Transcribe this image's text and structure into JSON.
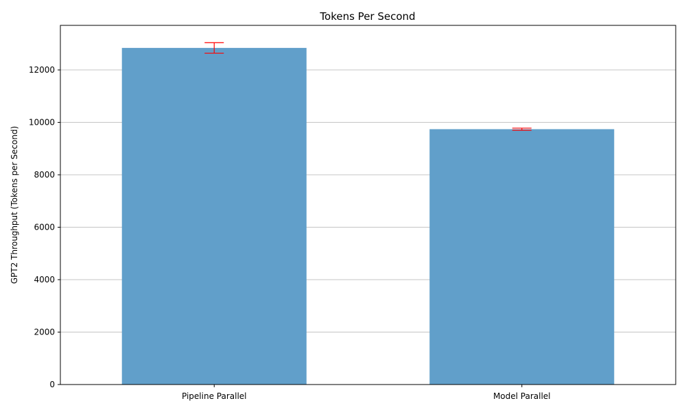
{
  "chart_data": {
    "type": "bar",
    "title": "Tokens Per Second",
    "xlabel": "",
    "ylabel": "GPT2 Throughput (Tokens per Second)",
    "categories": [
      "Pipeline Parallel",
      "Model Parallel"
    ],
    "values": [
      12840,
      9740
    ],
    "errors": [
      200,
      40
    ],
    "ylim": [
      0,
      13700
    ],
    "yticks": [
      0,
      2000,
      4000,
      6000,
      8000,
      10000,
      12000
    ],
    "grid": "y",
    "colors": {
      "bar": "#619fca",
      "error": "#ff0000",
      "grid": "#b0b0b0",
      "axis": "#000000"
    }
  }
}
